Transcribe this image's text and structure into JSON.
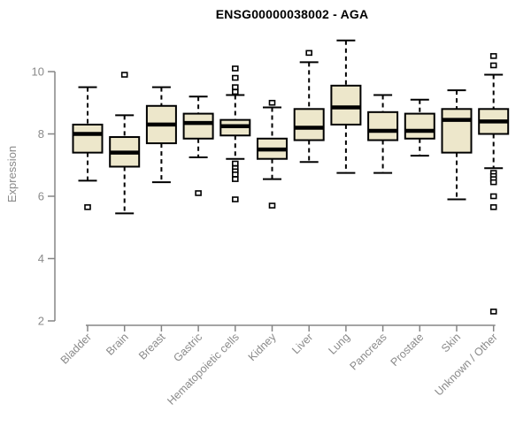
{
  "title": "ENSG00000038002 - AGA",
  "colors": {
    "box_fill": "#EDE7CB",
    "box_border": "#000000",
    "median": "#000000",
    "axis": "#858585",
    "tick_text": "#8a8a8a",
    "title_text": "#000000",
    "background": "#ffffff"
  },
  "chart_data": {
    "type": "boxplot",
    "title": "ENSG00000038002 - AGA",
    "xlabel": "",
    "ylabel": "Expression",
    "ylim": [
      2,
      10
    ],
    "yticks": [
      2,
      4,
      6,
      8,
      10
    ],
    "grid": false,
    "legend": false,
    "categories": [
      "Bladder",
      "Brain",
      "Breast",
      "Gastric",
      "Hematopoietic cells",
      "Kidney",
      "Liver",
      "Lung",
      "Pancreas",
      "Prostate",
      "Skin",
      "Unknown / Other"
    ],
    "series": [
      {
        "category": "Bladder",
        "whisker_low": 6.5,
        "q1": 7.4,
        "median": 8.0,
        "q3": 8.3,
        "whisker_high": 9.5,
        "outliers": [
          5.65
        ]
      },
      {
        "category": "Brain",
        "whisker_low": 5.45,
        "q1": 6.95,
        "median": 7.4,
        "q3": 7.9,
        "whisker_high": 8.6,
        "outliers": [
          9.9
        ]
      },
      {
        "category": "Breast",
        "whisker_low": 6.45,
        "q1": 7.7,
        "median": 8.3,
        "q3": 8.9,
        "whisker_high": 9.5,
        "outliers": []
      },
      {
        "category": "Gastric",
        "whisker_low": 7.25,
        "q1": 7.85,
        "median": 8.35,
        "q3": 8.65,
        "whisker_high": 9.2,
        "outliers": [
          6.1
        ]
      },
      {
        "category": "Hematopoietic cells",
        "whisker_low": 7.2,
        "q1": 7.95,
        "median": 8.25,
        "q3": 8.45,
        "whisker_high": 9.25,
        "outliers": [
          10.1,
          9.8,
          9.5,
          9.35,
          7.05,
          6.9,
          6.8,
          6.7,
          6.55,
          5.9
        ]
      },
      {
        "category": "Kidney",
        "whisker_low": 6.55,
        "q1": 7.2,
        "median": 7.5,
        "q3": 7.85,
        "whisker_high": 8.85,
        "outliers": [
          9.0,
          5.7
        ]
      },
      {
        "category": "Liver",
        "whisker_low": 7.1,
        "q1": 7.8,
        "median": 8.2,
        "q3": 8.8,
        "whisker_high": 10.3,
        "outliers": [
          10.6
        ]
      },
      {
        "category": "Lung",
        "whisker_low": 6.75,
        "q1": 8.3,
        "median": 8.85,
        "q3": 9.55,
        "whisker_high": 11.0,
        "outliers": []
      },
      {
        "category": "Pancreas",
        "whisker_low": 6.75,
        "q1": 7.8,
        "median": 8.1,
        "q3": 8.7,
        "whisker_high": 9.25,
        "outliers": []
      },
      {
        "category": "Prostate",
        "whisker_low": 7.3,
        "q1": 7.85,
        "median": 8.1,
        "q3": 8.65,
        "whisker_high": 9.1,
        "outliers": []
      },
      {
        "category": "Skin",
        "whisker_low": 5.9,
        "q1": 7.4,
        "median": 8.45,
        "q3": 8.8,
        "whisker_high": 9.4,
        "outliers": []
      },
      {
        "category": "Unknown / Other",
        "whisker_low": 6.9,
        "q1": 8.0,
        "median": 8.4,
        "q3": 8.8,
        "whisker_high": 9.9,
        "outliers": [
          10.5,
          10.2,
          6.75,
          6.65,
          6.55,
          6.45,
          6.0,
          5.65,
          2.3
        ]
      }
    ]
  }
}
